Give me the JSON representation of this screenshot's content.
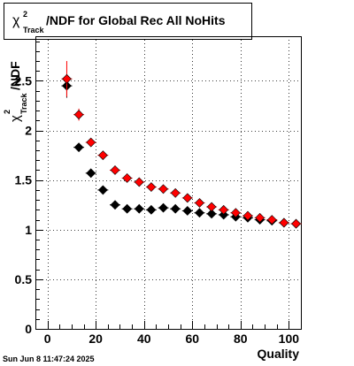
{
  "title": {
    "symbol": "χ",
    "sup": "2",
    "sub": "Track",
    "rest": "/NDF for Global Rec All NoHits"
  },
  "footer": {
    "timestamp": "Sun Jun  8 11:47:24 2025"
  },
  "chart_data": {
    "type": "scatter",
    "xlabel": "Quality",
    "ylabel": {
      "symbol": "χ",
      "sup": "2",
      "sub": "Track",
      "rest": "/NDF"
    },
    "xlim": [
      -5,
      105
    ],
    "ylim": [
      0,
      2.95
    ],
    "x_ticks": [
      0,
      20,
      40,
      60,
      80,
      100
    ],
    "x_tick_labels": [
      "0",
      "20",
      "40",
      "60",
      "80",
      "100"
    ],
    "y_ticks": [
      0,
      0.5,
      1,
      1.5,
      2,
      2.5
    ],
    "y_tick_labels": [
      "0",
      "0.5",
      "1",
      "1.5",
      "2",
      "2.5"
    ],
    "grid": true,
    "series": [
      {
        "color": "#000000",
        "x": [
          8,
          13,
          18,
          23,
          28,
          33,
          38,
          43,
          48,
          53,
          58,
          63,
          68,
          73,
          78,
          83,
          88,
          93,
          98,
          103
        ],
        "y": [
          2.45,
          1.83,
          1.57,
          1.4,
          1.25,
          1.21,
          1.21,
          1.2,
          1.22,
          1.21,
          1.19,
          1.17,
          1.16,
          1.15,
          1.13,
          1.12,
          1.1,
          1.09,
          1.07,
          1.06
        ],
        "err": [
          0.12,
          0.04,
          0.03,
          0.02,
          0.02,
          0.01,
          0.01,
          0.01,
          0.01,
          0.01,
          0.01,
          0.01,
          0.01,
          0.01,
          0.01,
          0.01,
          0.01,
          0.01,
          0.01,
          0.01
        ]
      },
      {
        "color": "#ff0000",
        "x": [
          8,
          13,
          18,
          23,
          28,
          33,
          38,
          43,
          48,
          53,
          58,
          63,
          68,
          73,
          78,
          83,
          88,
          93,
          98,
          103
        ],
        "y": [
          2.52,
          2.16,
          1.88,
          1.75,
          1.6,
          1.52,
          1.48,
          1.43,
          1.41,
          1.37,
          1.32,
          1.27,
          1.23,
          1.2,
          1.17,
          1.14,
          1.12,
          1.1,
          1.07,
          1.06
        ],
        "err": [
          0.18,
          0.06,
          0.03,
          0.02,
          0.02,
          0.02,
          0.02,
          0.01,
          0.01,
          0.01,
          0.01,
          0.01,
          0.01,
          0.01,
          0.01,
          0.01,
          0.01,
          0.01,
          0.01,
          0.01
        ]
      }
    ]
  }
}
